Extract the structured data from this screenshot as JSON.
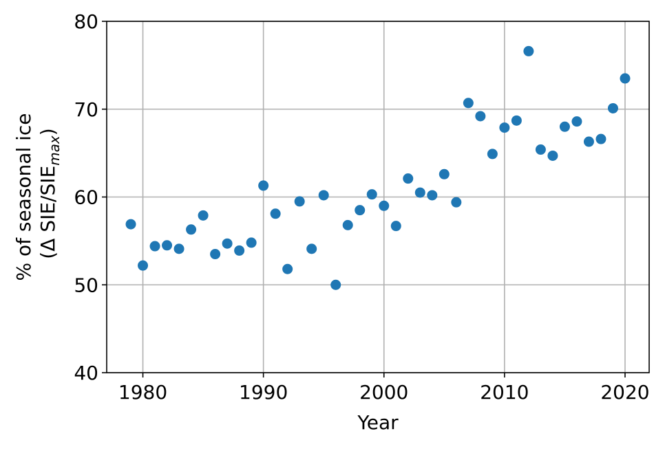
{
  "chart_data": {
    "type": "scatter",
    "title": "",
    "xlabel": "Year",
    "ylabel_line1": "% of seasonal ice",
    "ylabel_line2_prefix": "(Δ SIE/SIE",
    "ylabel_line2_sub": "max",
    "ylabel_line2_suffix": ")",
    "xlim": [
      1977,
      2022
    ],
    "ylim": [
      40,
      80
    ],
    "xticks": [
      1980,
      1990,
      2000,
      2010,
      2020
    ],
    "yticks": [
      40,
      50,
      60,
      70,
      80
    ],
    "grid": true,
    "marker_color": "#1f77b4",
    "series": [
      {
        "x": [
          1979,
          1980,
          1981,
          1982,
          1983,
          1984,
          1985,
          1986,
          1987,
          1988,
          1989,
          1990,
          1991,
          1992,
          1993,
          1994,
          1995,
          1996,
          1997,
          1998,
          1999,
          2000,
          2001,
          2002,
          2003,
          2004,
          2005,
          2006,
          2007,
          2008,
          2009,
          2010,
          2011,
          2012,
          2013,
          2014,
          2015,
          2016,
          2017,
          2018,
          2019,
          2020
        ],
        "y": [
          56.9,
          52.2,
          54.4,
          54.5,
          54.1,
          56.3,
          57.9,
          53.5,
          54.7,
          53.9,
          54.8,
          61.3,
          58.1,
          51.8,
          59.5,
          54.1,
          60.2,
          50.0,
          56.8,
          58.5,
          60.3,
          59.0,
          56.7,
          62.1,
          60.5,
          60.2,
          62.6,
          59.4,
          70.7,
          69.2,
          64.9,
          67.9,
          68.7,
          76.6,
          65.4,
          64.7,
          68.0,
          68.6,
          66.3,
          66.6,
          70.1,
          73.5
        ]
      }
    ]
  }
}
